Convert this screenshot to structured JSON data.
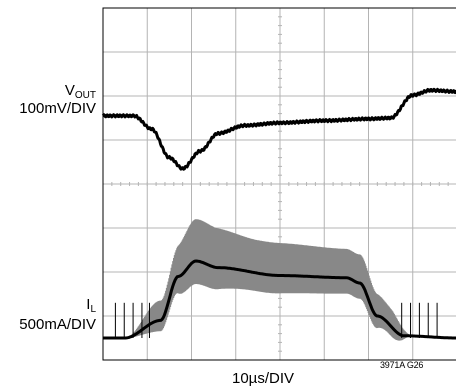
{
  "labels": {
    "vout_main": "V",
    "vout_sub": "OUT",
    "vout_scale": "100mV/DIV",
    "il_main": "I",
    "il_sub": "L",
    "il_scale": "500mA/DIV",
    "x_scale": "10µs/DIV",
    "figure_id": "3971A G26"
  },
  "colors": {
    "trace": "#000000",
    "grid": "#b4b4b4",
    "ripple": "#888888"
  },
  "chart_data": {
    "type": "line",
    "xlabel": "10µs/DIV",
    "grid": true,
    "x": {
      "divisions": 8,
      "range_us": [
        0,
        80
      ]
    },
    "y": {
      "divisions": 8
    },
    "series": [
      {
        "name": "VOUT",
        "units": "div",
        "points": [
          [
            0,
            5.55
          ],
          [
            0.7,
            5.55
          ],
          [
            1.1,
            5.25
          ],
          [
            1.5,
            4.6
          ],
          [
            1.8,
            4.35
          ],
          [
            2.2,
            4.75
          ],
          [
            2.6,
            5.15
          ],
          [
            3.2,
            5.33
          ],
          [
            4.0,
            5.39
          ],
          [
            5.0,
            5.44
          ],
          [
            6.0,
            5.48
          ],
          [
            6.5,
            5.5
          ],
          [
            7.0,
            6.02
          ],
          [
            7.4,
            6.13
          ],
          [
            8.0,
            6.1
          ]
        ]
      },
      {
        "name": "IL",
        "units": "div",
        "points": [
          [
            0,
            0.5
          ],
          [
            0.5,
            0.5
          ],
          [
            1.3,
            0.9
          ],
          [
            1.7,
            1.9
          ],
          [
            2.1,
            2.25
          ],
          [
            2.6,
            2.1
          ],
          [
            4.0,
            1.92
          ],
          [
            5.5,
            1.87
          ],
          [
            5.8,
            1.75
          ],
          [
            6.2,
            1.0
          ],
          [
            6.8,
            0.55
          ],
          [
            8.0,
            0.5
          ]
        ],
        "ripple_envelope": [
          [
            0.5,
            0.0
          ],
          [
            1.3,
            0.45
          ],
          [
            2.1,
            0.95
          ],
          [
            3.5,
            0.75
          ],
          [
            5.8,
            0.65
          ],
          [
            6.5,
            0.4
          ],
          [
            7.0,
            0.0
          ]
        ]
      }
    ]
  }
}
